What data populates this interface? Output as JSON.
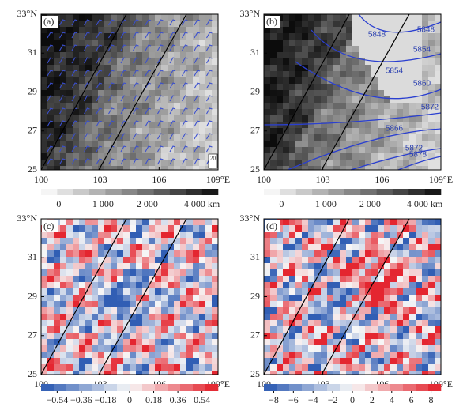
{
  "panels": [
    {
      "label": "(a)",
      "wind_scale_label": 20
    },
    {
      "label": "(b)",
      "contour_labels": [
        5848,
        5848,
        5854,
        5854,
        5860,
        5866,
        5872,
        5872,
        5878
      ]
    },
    {
      "label": "(c)"
    },
    {
      "label": "(d)"
    }
  ],
  "xticks": [
    100,
    103,
    106,
    {
      "value": 109,
      "label": "109°E"
    }
  ],
  "xlim": [
    100,
    109
  ],
  "yticks": [
    25,
    27,
    29,
    31,
    {
      "value": 33,
      "label": "33°N"
    }
  ],
  "ylim": [
    25,
    33
  ],
  "colorbars": [
    {
      "ticks": [
        0,
        {
          "value": 1000,
          "label": "1 000"
        },
        {
          "value": 2000,
          "label": "2 000"
        },
        {
          "value": 4000,
          "label": "4 000 km"
        }
      ]
    },
    {
      "ticks": [
        0,
        {
          "value": 1000,
          "label": "1 000"
        },
        {
          "value": 2000,
          "label": "2 000"
        },
        {
          "value": 4000,
          "label": "4 000 km"
        }
      ]
    },
    {
      "lim": [
        -0.66,
        0.66
      ],
      "ticks": [
        {
          "value": -0.54,
          "label": "−0.54"
        },
        {
          "value": -0.36,
          "label": "−0.36"
        },
        {
          "value": -0.18,
          "label": "−0.18"
        },
        0,
        0.18,
        0.36,
        0.54
      ]
    },
    {
      "lim": [
        -9,
        9
      ],
      "ticks": [
        {
          "value": -8,
          "label": "−8"
        },
        {
          "value": -6,
          "label": "−6"
        },
        {
          "value": -4,
          "label": "−4"
        },
        {
          "value": -2,
          "label": "−2"
        },
        0,
        2,
        4,
        6,
        8
      ]
    }
  ]
}
